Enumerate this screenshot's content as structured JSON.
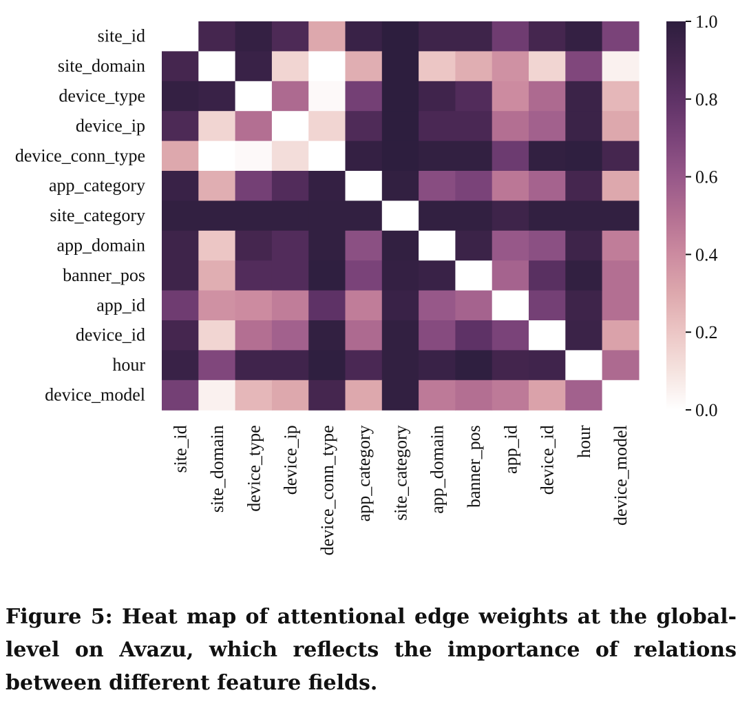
{
  "chart_data": {
    "type": "heatmap",
    "title": "",
    "xlabel": "",
    "ylabel": "",
    "rows": [
      "site_id",
      "site_domain",
      "device_type",
      "device_ip",
      "device_conn_type",
      "app_category",
      "site_category",
      "app_domain",
      "banner_pos",
      "app_id",
      "device_id",
      "hour",
      "device_model"
    ],
    "columns": [
      "site_id",
      "site_domain",
      "device_type",
      "device_ip",
      "device_conn_type",
      "app_category",
      "site_category",
      "app_domain",
      "banner_pos",
      "app_id",
      "device_id",
      "hour",
      "device_model"
    ],
    "values": [
      [
        0.0,
        0.9,
        0.97,
        0.87,
        0.3,
        0.95,
        1.0,
        0.93,
        0.93,
        0.74,
        0.9,
        0.97,
        0.7
      ],
      [
        0.9,
        0.0,
        0.95,
        0.15,
        0.0,
        0.28,
        1.0,
        0.2,
        0.28,
        0.38,
        0.15,
        0.68,
        0.05
      ],
      [
        0.97,
        0.95,
        0.0,
        0.52,
        0.02,
        0.72,
        1.0,
        0.92,
        0.85,
        0.4,
        0.52,
        0.94,
        0.25
      ],
      [
        0.87,
        0.15,
        0.5,
        0.0,
        0.15,
        0.86,
        1.0,
        0.88,
        0.88,
        0.5,
        0.56,
        0.94,
        0.3
      ],
      [
        0.3,
        0.0,
        0.02,
        0.12,
        0.0,
        0.97,
        1.0,
        0.98,
        0.98,
        0.75,
        0.98,
        0.99,
        0.9
      ],
      [
        0.95,
        0.28,
        0.72,
        0.85,
        0.97,
        0.0,
        0.98,
        0.65,
        0.7,
        0.47,
        0.55,
        0.9,
        0.3
      ],
      [
        0.98,
        0.98,
        0.98,
        0.98,
        0.98,
        0.98,
        0.0,
        0.98,
        0.98,
        0.93,
        0.98,
        0.98,
        0.98
      ],
      [
        0.93,
        0.2,
        0.9,
        0.85,
        0.98,
        0.64,
        0.98,
        0.0,
        0.94,
        0.6,
        0.64,
        0.93,
        0.45
      ],
      [
        0.93,
        0.28,
        0.85,
        0.85,
        0.99,
        0.7,
        0.97,
        0.95,
        0.0,
        0.55,
        0.82,
        0.98,
        0.5
      ],
      [
        0.74,
        0.38,
        0.4,
        0.45,
        0.8,
        0.45,
        0.95,
        0.6,
        0.55,
        0.0,
        0.72,
        0.93,
        0.5
      ],
      [
        0.9,
        0.15,
        0.5,
        0.56,
        0.98,
        0.52,
        0.98,
        0.66,
        0.8,
        0.7,
        0.0,
        0.94,
        0.32
      ],
      [
        0.95,
        0.68,
        0.92,
        0.92,
        0.99,
        0.88,
        0.98,
        0.95,
        0.99,
        0.91,
        0.92,
        0.0,
        0.52
      ],
      [
        0.72,
        0.05,
        0.25,
        0.3,
        0.9,
        0.3,
        0.98,
        0.46,
        0.5,
        0.46,
        0.32,
        0.56,
        0.0
      ]
    ],
    "vmin": 0.0,
    "vmax": 1.0,
    "colorbar_ticks": [
      "1.0",
      "0.8",
      "0.6",
      "0.4",
      "0.2",
      "0.0"
    ],
    "colorbar_tick_values": [
      1.0,
      0.8,
      0.6,
      0.4,
      0.2,
      0.0
    ],
    "legend": "colorbar-right",
    "grid": false
  },
  "caption": "Figure 5: Heat map of attentional edge weights at the global-level on Avazu, which reflects the importance of relations between different feature fields."
}
